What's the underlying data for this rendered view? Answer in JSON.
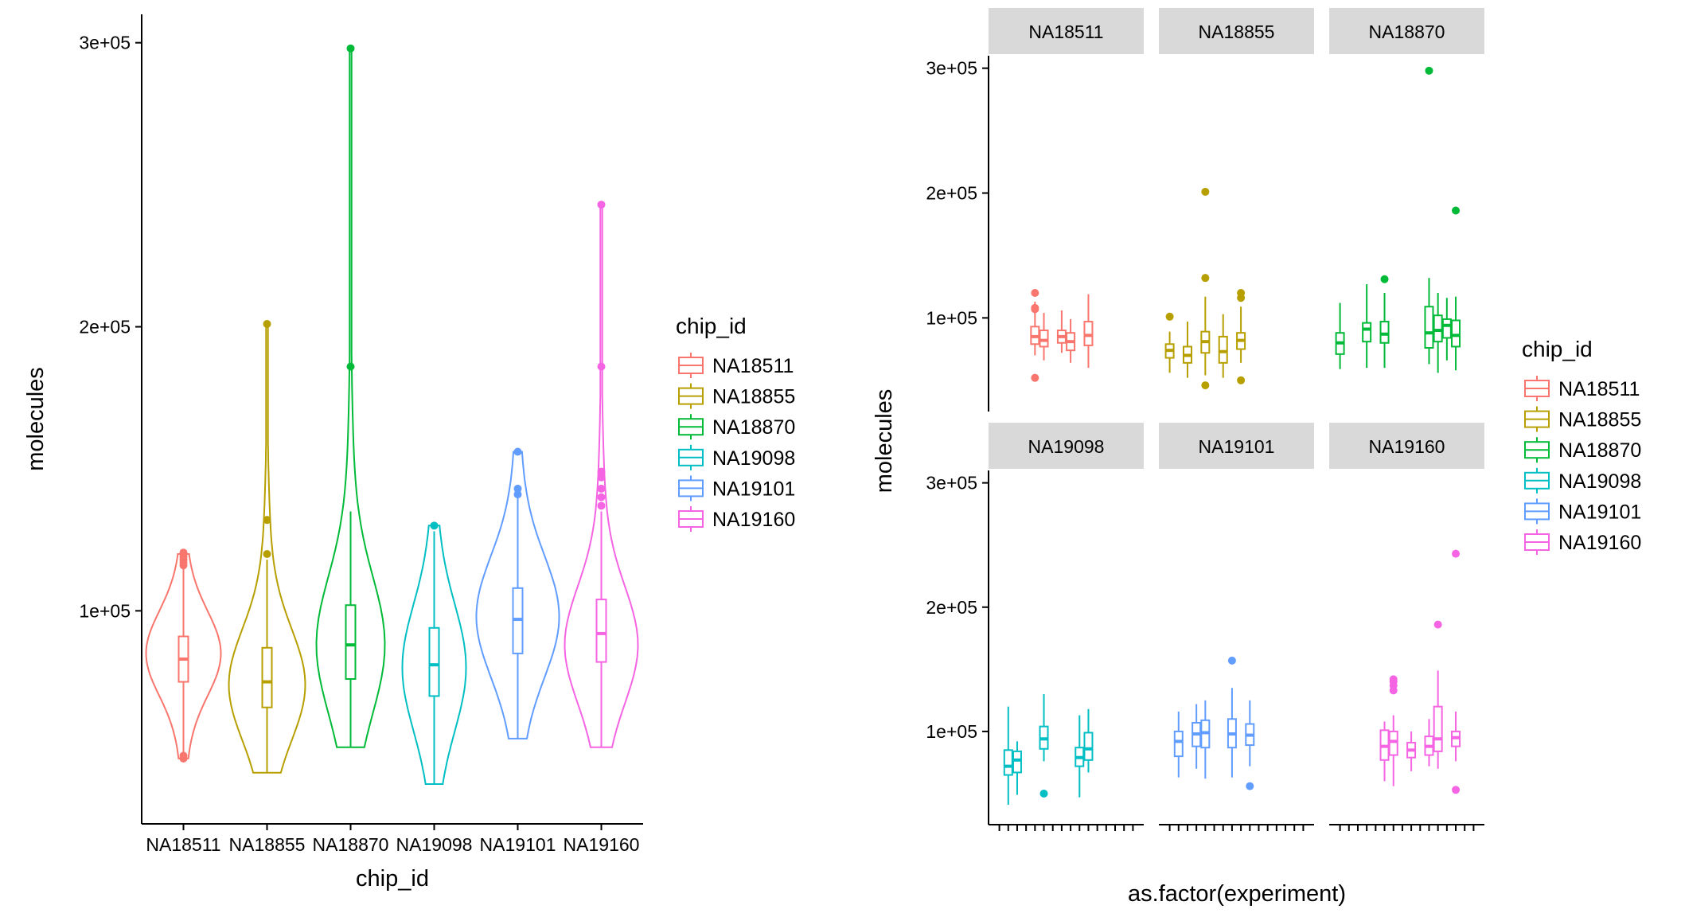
{
  "chart_data": [
    {
      "type": "violin",
      "xlabel": "chip_id",
      "ylabel": "molecules",
      "ylim": [
        25000,
        310000
      ],
      "yticks": [
        100000,
        200000,
        300000
      ],
      "ytick_labels": [
        "1e+05",
        "2e+05",
        "3e+05"
      ],
      "categories": [
        "NA18511",
        "NA18855",
        "NA18870",
        "NA19098",
        "NA19101",
        "NA19160"
      ],
      "series": [
        {
          "name": "NA18511",
          "color": "#F8766D",
          "min": 48000,
          "q1": 75000,
          "median": 83000,
          "q3": 91000,
          "max": 120000,
          "whisker_low": 50000,
          "whisker_high": 116000,
          "outliers": [
            116000,
            117000,
            118000,
            119000,
            120000,
            120500,
            48000,
            49000
          ],
          "density_max_at": 85000,
          "half_width": 47
        },
        {
          "name": "NA18855",
          "color": "#B79F00",
          "min": 43000,
          "q1": 66000,
          "median": 75000,
          "q3": 87000,
          "max": 201000,
          "whisker_low": 43000,
          "whisker_high": 118000,
          "outliers": [
            120000,
            132000,
            201000
          ],
          "density_max_at": 74000,
          "half_width": 48
        },
        {
          "name": "NA18870",
          "color": "#00BA38",
          "min": 52000,
          "q1": 76000,
          "median": 88000,
          "q3": 102000,
          "max": 298000,
          "whisker_low": 52000,
          "whisker_high": 135000,
          "outliers": [
            186000,
            298000
          ],
          "density_max_at": 88000,
          "half_width": 43
        },
        {
          "name": "NA19098",
          "color": "#00BFC4",
          "min": 39000,
          "q1": 70000,
          "median": 81000,
          "q3": 94000,
          "max": 130000,
          "whisker_low": 39000,
          "whisker_high": 128000,
          "outliers": [
            130000
          ],
          "density_max_at": 80000,
          "half_width": 40
        },
        {
          "name": "NA19101",
          "color": "#619CFF",
          "min": 55000,
          "q1": 85000,
          "median": 97000,
          "q3": 108000,
          "max": 156000,
          "whisker_low": 55000,
          "whisker_high": 140000,
          "outliers": [
            141000,
            143000,
            156000
          ],
          "density_max_at": 98000,
          "half_width": 52
        },
        {
          "name": "NA19160",
          "color": "#F564E3",
          "min": 52000,
          "q1": 82000,
          "median": 92000,
          "q3": 104000,
          "max": 243000,
          "whisker_low": 52000,
          "whisker_high": 135000,
          "outliers": [
            137000,
            140000,
            143000,
            147000,
            149000,
            186000,
            243000
          ],
          "density_max_at": 88000,
          "half_width": 46
        }
      ]
    },
    {
      "type": "boxplot_facets",
      "xlabel": "as.factor(experiment)",
      "ylabel": "molecules",
      "ylim": [
        25000,
        310000
      ],
      "yticks": [
        100000,
        200000,
        300000
      ],
      "ytick_labels": [
        "1e+05",
        "2e+05",
        "3e+05"
      ],
      "n_x_levels": 16,
      "facets": [
        {
          "title": "NA18511",
          "color": "#F8766D",
          "boxes": [
            {
              "x": 5,
              "q1": 79000,
              "median": 85000,
              "q3": 93000,
              "lo": 70000,
              "hi": 113000,
              "outliers": [
                120000,
                107000,
                108000,
                52000
              ]
            },
            {
              "x": 6,
              "q1": 77000,
              "median": 82000,
              "q3": 90000,
              "lo": 66000,
              "hi": 104000,
              "outliers": []
            },
            {
              "x": 8,
              "q1": 80000,
              "median": 85000,
              "q3": 90000,
              "lo": 72000,
              "hi": 106000,
              "outliers": []
            },
            {
              "x": 9,
              "q1": 74000,
              "median": 81000,
              "q3": 88000,
              "lo": 64000,
              "hi": 99000,
              "outliers": []
            },
            {
              "x": 11,
              "q1": 78000,
              "median": 86000,
              "q3": 97000,
              "lo": 60000,
              "hi": 119000,
              "outliers": []
            }
          ]
        },
        {
          "title": "NA18855",
          "color": "#B79F00",
          "boxes": [
            {
              "x": 1,
              "q1": 68000,
              "median": 74000,
              "q3": 79000,
              "lo": 56000,
              "hi": 89000,
              "outliers": [
                101000
              ]
            },
            {
              "x": 3,
              "q1": 64000,
              "median": 70000,
              "q3": 77000,
              "lo": 52000,
              "hi": 97000,
              "outliers": []
            },
            {
              "x": 5,
              "q1": 72000,
              "median": 81000,
              "q3": 89000,
              "lo": 54000,
              "hi": 117000,
              "outliers": [
                201000,
                132000,
                46000
              ]
            },
            {
              "x": 7,
              "q1": 64000,
              "median": 73000,
              "q3": 85000,
              "lo": 52000,
              "hi": 103000,
              "outliers": []
            },
            {
              "x": 9,
              "q1": 75000,
              "median": 82000,
              "q3": 88000,
              "lo": 64000,
              "hi": 109000,
              "outliers": [
                116000,
                120000,
                50000
              ]
            }
          ]
        },
        {
          "title": "NA18870",
          "color": "#00BA38",
          "boxes": [
            {
              "x": 1,
              "q1": 71000,
              "median": 80000,
              "q3": 88000,
              "lo": 59000,
              "hi": 112000,
              "outliers": []
            },
            {
              "x": 4,
              "q1": 81000,
              "median": 91000,
              "q3": 96000,
              "lo": 60000,
              "hi": 127000,
              "outliers": []
            },
            {
              "x": 6,
              "q1": 80000,
              "median": 87000,
              "q3": 97000,
              "lo": 60000,
              "hi": 120000,
              "outliers": [
                131000
              ]
            },
            {
              "x": 11,
              "q1": 76000,
              "median": 88000,
              "q3": 109000,
              "lo": 63000,
              "hi": 132000,
              "outliers": [
                298000
              ]
            },
            {
              "x": 12,
              "q1": 81000,
              "median": 90000,
              "q3": 102000,
              "lo": 56000,
              "hi": 120000,
              "outliers": []
            },
            {
              "x": 13,
              "q1": 84000,
              "median": 94000,
              "q3": 99000,
              "lo": 66000,
              "hi": 116000,
              "outliers": []
            },
            {
              "x": 14,
              "q1": 77000,
              "median": 86000,
              "q3": 98000,
              "lo": 58000,
              "hi": 117000,
              "outliers": [
                186000
              ]
            }
          ]
        },
        {
          "title": "NA19098",
          "color": "#00BFC4",
          "boxes": [
            {
              "x": 2,
              "q1": 65000,
              "median": 72000,
              "q3": 85000,
              "lo": 41000,
              "hi": 120000,
              "outliers": []
            },
            {
              "x": 3,
              "q1": 67000,
              "median": 77000,
              "q3": 84000,
              "lo": 49000,
              "hi": 92000,
              "outliers": []
            },
            {
              "x": 6,
              "q1": 86000,
              "median": 94000,
              "q3": 104000,
              "lo": 76000,
              "hi": 130000,
              "outliers": [
                50000
              ]
            },
            {
              "x": 10,
              "q1": 72000,
              "median": 79000,
              "q3": 87000,
              "lo": 47000,
              "hi": 113000,
              "outliers": []
            },
            {
              "x": 11,
              "q1": 77000,
              "median": 86000,
              "q3": 99000,
              "lo": 67000,
              "hi": 118000,
              "outliers": []
            }
          ]
        },
        {
          "title": "NA19101",
          "color": "#619CFF",
          "boxes": [
            {
              "x": 2,
              "q1": 80000,
              "median": 92000,
              "q3": 100000,
              "lo": 63000,
              "hi": 116000,
              "outliers": []
            },
            {
              "x": 4,
              "q1": 88000,
              "median": 98000,
              "q3": 107000,
              "lo": 70000,
              "hi": 122000,
              "outliers": []
            },
            {
              "x": 5,
              "q1": 87000,
              "median": 99000,
              "q3": 109000,
              "lo": 62000,
              "hi": 125000,
              "outliers": []
            },
            {
              "x": 8,
              "q1": 87000,
              "median": 98000,
              "q3": 110000,
              "lo": 63000,
              "hi": 135000,
              "outliers": [
                157000
              ]
            },
            {
              "x": 10,
              "q1": 89000,
              "median": 97000,
              "q3": 106000,
              "lo": 72000,
              "hi": 125000,
              "outliers": [
                56000
              ]
            }
          ]
        },
        {
          "title": "NA19160",
          "color": "#F564E3",
          "boxes": [
            {
              "x": 6,
              "q1": 77000,
              "median": 88000,
              "q3": 101000,
              "lo": 60000,
              "hi": 108000,
              "outliers": []
            },
            {
              "x": 7,
              "q1": 81000,
              "median": 92000,
              "q3": 100000,
              "lo": 56000,
              "hi": 113000,
              "outliers": [
                133000,
                137000,
                140000,
                142000
              ]
            },
            {
              "x": 9,
              "q1": 79000,
              "median": 85000,
              "q3": 91000,
              "lo": 68000,
              "hi": 100000,
              "outliers": []
            },
            {
              "x": 11,
              "q1": 81000,
              "median": 88000,
              "q3": 96000,
              "lo": 72000,
              "hi": 110000,
              "outliers": []
            },
            {
              "x": 12,
              "q1": 84000,
              "median": 94000,
              "q3": 120000,
              "lo": 70000,
              "hi": 149000,
              "outliers": [
                186000
              ]
            },
            {
              "x": 14,
              "q1": 88000,
              "median": 95000,
              "q3": 100000,
              "lo": 76000,
              "hi": 116000,
              "outliers": [
                243000,
                53000
              ]
            }
          ]
        }
      ]
    }
  ],
  "legend": {
    "title": "chip_id",
    "position": "right",
    "entries": [
      {
        "label": "NA18511",
        "color": "#F8766D"
      },
      {
        "label": "NA18855",
        "color": "#B79F00"
      },
      {
        "label": "NA18870",
        "color": "#00BA38"
      },
      {
        "label": "NA19098",
        "color": "#00BFC4"
      },
      {
        "label": "NA19101",
        "color": "#619CFF"
      },
      {
        "label": "NA19160",
        "color": "#F564E3"
      }
    ]
  }
}
